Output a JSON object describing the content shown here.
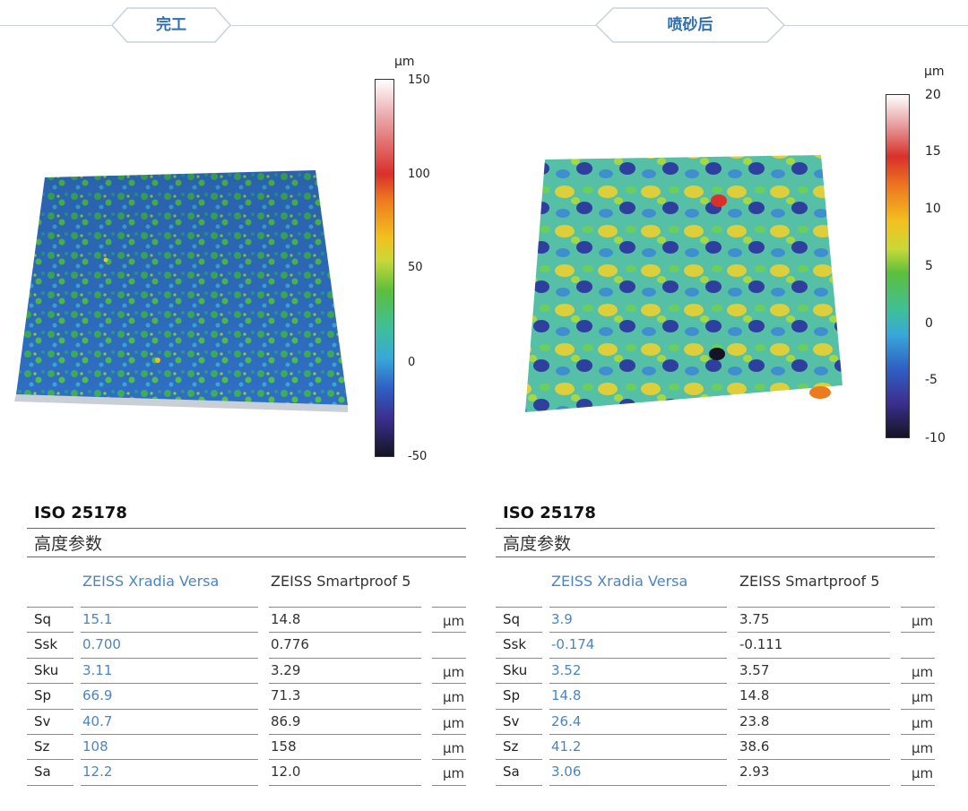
{
  "header": {
    "left_tag": "完工",
    "right_tag": "喷砂后"
  },
  "left_panel": {
    "colorbar": {
      "unit": "μm",
      "ticks": [
        "150",
        "100",
        "50",
        "0",
        "-50"
      ]
    },
    "table": {
      "standard": "ISO 25178",
      "subtitle": "高度参数",
      "col_a": "ZEISS Xradia Versa",
      "col_b": "ZEISS Smartproof 5",
      "rows": [
        {
          "param": "Sq",
          "a": "15.1",
          "b": "14.8",
          "unit": "μm"
        },
        {
          "param": "Ssk",
          "a": "0.700",
          "b": "0.776",
          "unit": ""
        },
        {
          "param": "Sku",
          "a": "3.11",
          "b": "3.29",
          "unit": "μm"
        },
        {
          "param": "Sp",
          "a": "66.9",
          "b": "71.3",
          "unit": "μm"
        },
        {
          "param": "Sv",
          "a": "40.7",
          "b": "86.9",
          "unit": "μm"
        },
        {
          "param": "Sz",
          "a": "108",
          "b": "158",
          "unit": "μm"
        },
        {
          "param": "Sa",
          "a": "12.2",
          "b": "12.0",
          "unit": "μm"
        }
      ]
    }
  },
  "right_panel": {
    "colorbar": {
      "unit": "μm",
      "ticks": [
        "20",
        "15",
        "10",
        "5",
        "0",
        "-5",
        "-10"
      ]
    },
    "table": {
      "standard": "ISO 25178",
      "subtitle": "高度参数",
      "col_a": "ZEISS Xradia Versa",
      "col_b": "ZEISS Smartproof 5",
      "rows": [
        {
          "param": "Sq",
          "a": "3.9",
          "b": "3.75",
          "unit": "μm"
        },
        {
          "param": "Ssk",
          "a": "-0.174",
          "b": "-0.111",
          "unit": ""
        },
        {
          "param": "Sku",
          "a": "3.52",
          "b": "3.57",
          "unit": "μm"
        },
        {
          "param": "Sp",
          "a": "14.8",
          "b": "14.8",
          "unit": "μm"
        },
        {
          "param": "Sv",
          "a": "26.4",
          "b": "23.8",
          "unit": "μm"
        },
        {
          "param": "Sz",
          "a": "41.2",
          "b": "38.6",
          "unit": "μm"
        },
        {
          "param": "Sa",
          "a": "3.06",
          "b": "2.93",
          "unit": "μm"
        }
      ]
    }
  },
  "colors": {
    "accent_blue": "#4a86c0",
    "tag_text": "#2f6fae",
    "header_rule": "#c9d2dc",
    "colormap": [
      "#141423",
      "#3b2f8f",
      "#2f5fc4",
      "#38a8d8",
      "#3fbf9a",
      "#5cbf3c",
      "#c9d838",
      "#f2c11f",
      "#ee7a1f",
      "#d9302a",
      "#e9a6a9",
      "#ffffff"
    ]
  }
}
